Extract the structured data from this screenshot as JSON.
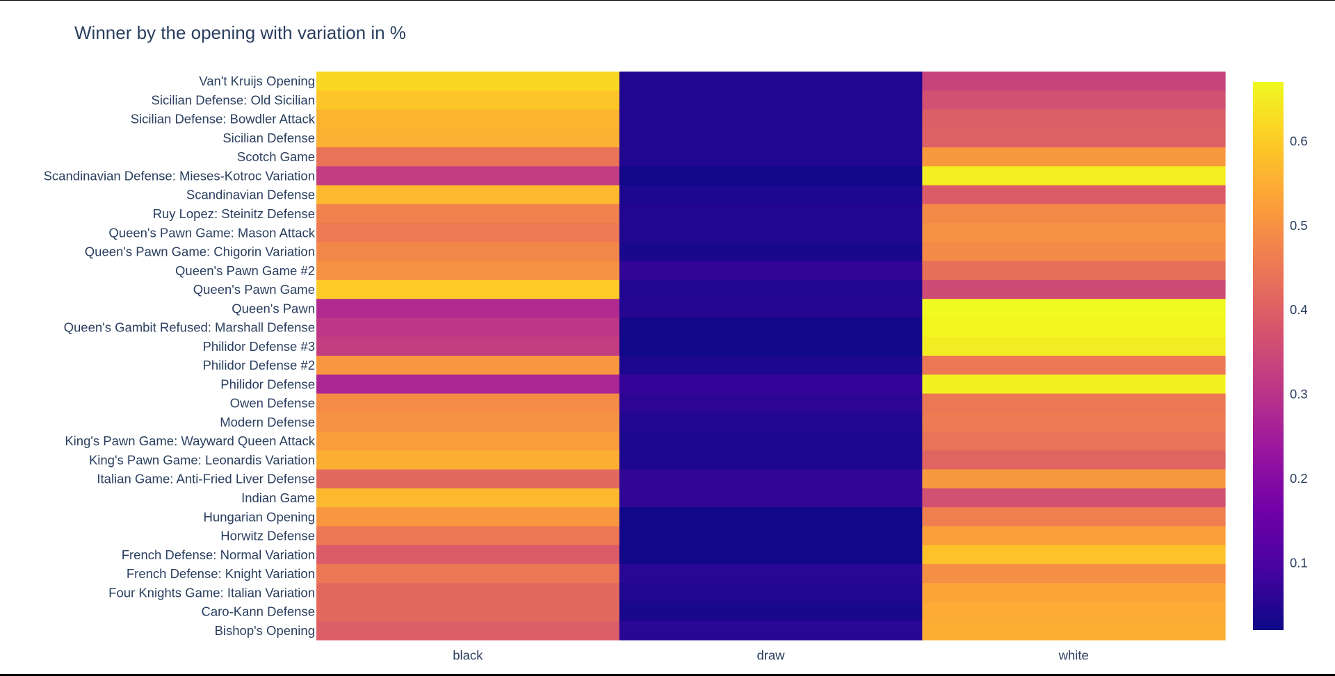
{
  "chart_data": {
    "type": "heatmap",
    "title": "Winner by the opening with variation in %",
    "xlabel": "",
    "ylabel": "",
    "x": [
      "black",
      "draw",
      "white"
    ],
    "y": [
      "Van't Kruijs Opening",
      "Sicilian Defense: Old Sicilian",
      "Sicilian Defense: Bowdler Attack",
      "Sicilian Defense",
      "Scotch Game",
      "Scandinavian Defense: Mieses-Kotroc Variation",
      "Scandinavian Defense",
      "Ruy Lopez: Steinitz Defense",
      "Queen's Pawn Game: Mason Attack",
      "Queen's Pawn Game: Chigorin Variation",
      "Queen's Pawn Game #2",
      "Queen's Pawn Game",
      "Queen's Pawn",
      "Queen's Gambit Refused: Marshall Defense",
      "Philidor Defense #3",
      "Philidor Defense #2",
      "Philidor Defense",
      "Owen Defense",
      "Modern Defense",
      "King's Pawn Game: Wayward Queen Attack",
      "King's Pawn Game: Leonardis Variation",
      "Italian Game: Anti-Fried Liver Defense",
      "Indian Game",
      "Hungarian Opening",
      "Horwitz Defense",
      "French Defense: Normal Variation",
      "French Defense: Knight Variation",
      "Four Knights Game: Italian Variation",
      "Caro-Kann Defense",
      "Bishop's Opening"
    ],
    "z": [
      [
        0.62,
        0.045,
        0.335
      ],
      [
        0.59,
        0.045,
        0.365
      ],
      [
        0.56,
        0.045,
        0.395
      ],
      [
        0.555,
        0.045,
        0.4
      ],
      [
        0.44,
        0.045,
        0.515
      ],
      [
        0.32,
        0.025,
        0.655
      ],
      [
        0.57,
        0.04,
        0.39
      ],
      [
        0.47,
        0.045,
        0.485
      ],
      [
        0.455,
        0.045,
        0.5
      ],
      [
        0.48,
        0.035,
        0.485
      ],
      [
        0.5,
        0.065,
        0.435
      ],
      [
        0.6,
        0.045,
        0.355
      ],
      [
        0.28,
        0.05,
        0.67
      ],
      [
        0.31,
        0.025,
        0.665
      ],
      [
        0.325,
        0.025,
        0.65
      ],
      [
        0.51,
        0.04,
        0.45
      ],
      [
        0.27,
        0.07,
        0.66
      ],
      [
        0.49,
        0.06,
        0.45
      ],
      [
        0.5,
        0.045,
        0.455
      ],
      [
        0.52,
        0.04,
        0.44
      ],
      [
        0.55,
        0.04,
        0.41
      ],
      [
        0.42,
        0.065,
        0.515
      ],
      [
        0.57,
        0.065,
        0.365
      ],
      [
        0.51,
        0.025,
        0.465
      ],
      [
        0.45,
        0.025,
        0.525
      ],
      [
        0.39,
        0.025,
        0.585
      ],
      [
        0.45,
        0.055,
        0.495
      ],
      [
        0.42,
        0.045,
        0.535
      ],
      [
        0.42,
        0.035,
        0.545
      ],
      [
        0.395,
        0.055,
        0.55
      ]
    ],
    "colorscale": "Plasma",
    "zmin": 0.02,
    "zmax": 0.67,
    "colorbar_ticks": [
      0.1,
      0.2,
      0.3,
      0.4,
      0.5,
      0.6
    ],
    "colorbar_tick_labels": [
      "0.1",
      "0.2",
      "0.3",
      "0.4",
      "0.5",
      "0.6"
    ],
    "legend": "none"
  }
}
